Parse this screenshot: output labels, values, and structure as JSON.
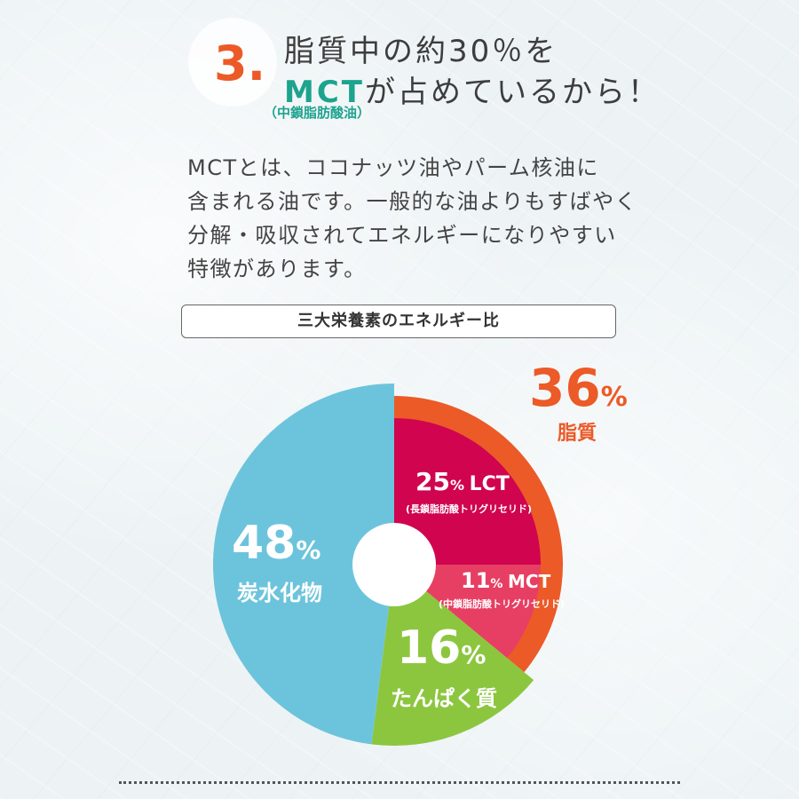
{
  "heading": {
    "number": "3.",
    "line1": "脂質中の約30％を",
    "line2_highlight": "MCT",
    "line2_rest": "が占めているから！",
    "sub": "（中鎖脂肪酸油）"
  },
  "description": [
    "MCTとは、ココナッツ油やパーム核油に",
    "含まれる油です。一般的な油よりもすばやく",
    "分解・吸収されてエネルギーになりやすい",
    "特徴があります。"
  ],
  "chart_title": "三大栄養素のエネルギー比",
  "chart_data": {
    "type": "pie",
    "title": "三大栄養素のエネルギー比",
    "slices": [
      {
        "label": "脂質",
        "value": 36,
        "unit": "%",
        "color": "#ec5a27",
        "subslices": [
          {
            "label": "LCT",
            "sublabel": "(長鎖脂肪酸トリグリセリド)",
            "value": 25,
            "unit": "%",
            "color": "#d0044f"
          },
          {
            "label": "MCT",
            "sublabel": "(中鎖脂肪酸トリグリセリド)",
            "value": 11,
            "unit": "%",
            "color": "#e73f63"
          }
        ]
      },
      {
        "label": "たんぱく質",
        "value": 16,
        "unit": "%",
        "color": "#8cc63f"
      },
      {
        "label": "炭水化物",
        "value": 48,
        "unit": "%",
        "color": "#6cc4dc"
      }
    ]
  },
  "labels": {
    "fat_value": "36",
    "fat_unit": "%",
    "fat_name": "脂質",
    "lct_value": "25",
    "lct_unit": "%",
    "lct_name": "LCT",
    "lct_sub": "(長鎖脂肪酸トリグリセリド)",
    "mct_value": "11",
    "mct_unit": "%",
    "mct_name": "MCT",
    "mct_sub": "(中鎖脂肪酸トリグリセリド)",
    "protein_value": "16",
    "protein_unit": "%",
    "protein_name": "たんぱく質",
    "carb_value": "48",
    "carb_unit": "%",
    "carb_name": "炭水化物"
  }
}
